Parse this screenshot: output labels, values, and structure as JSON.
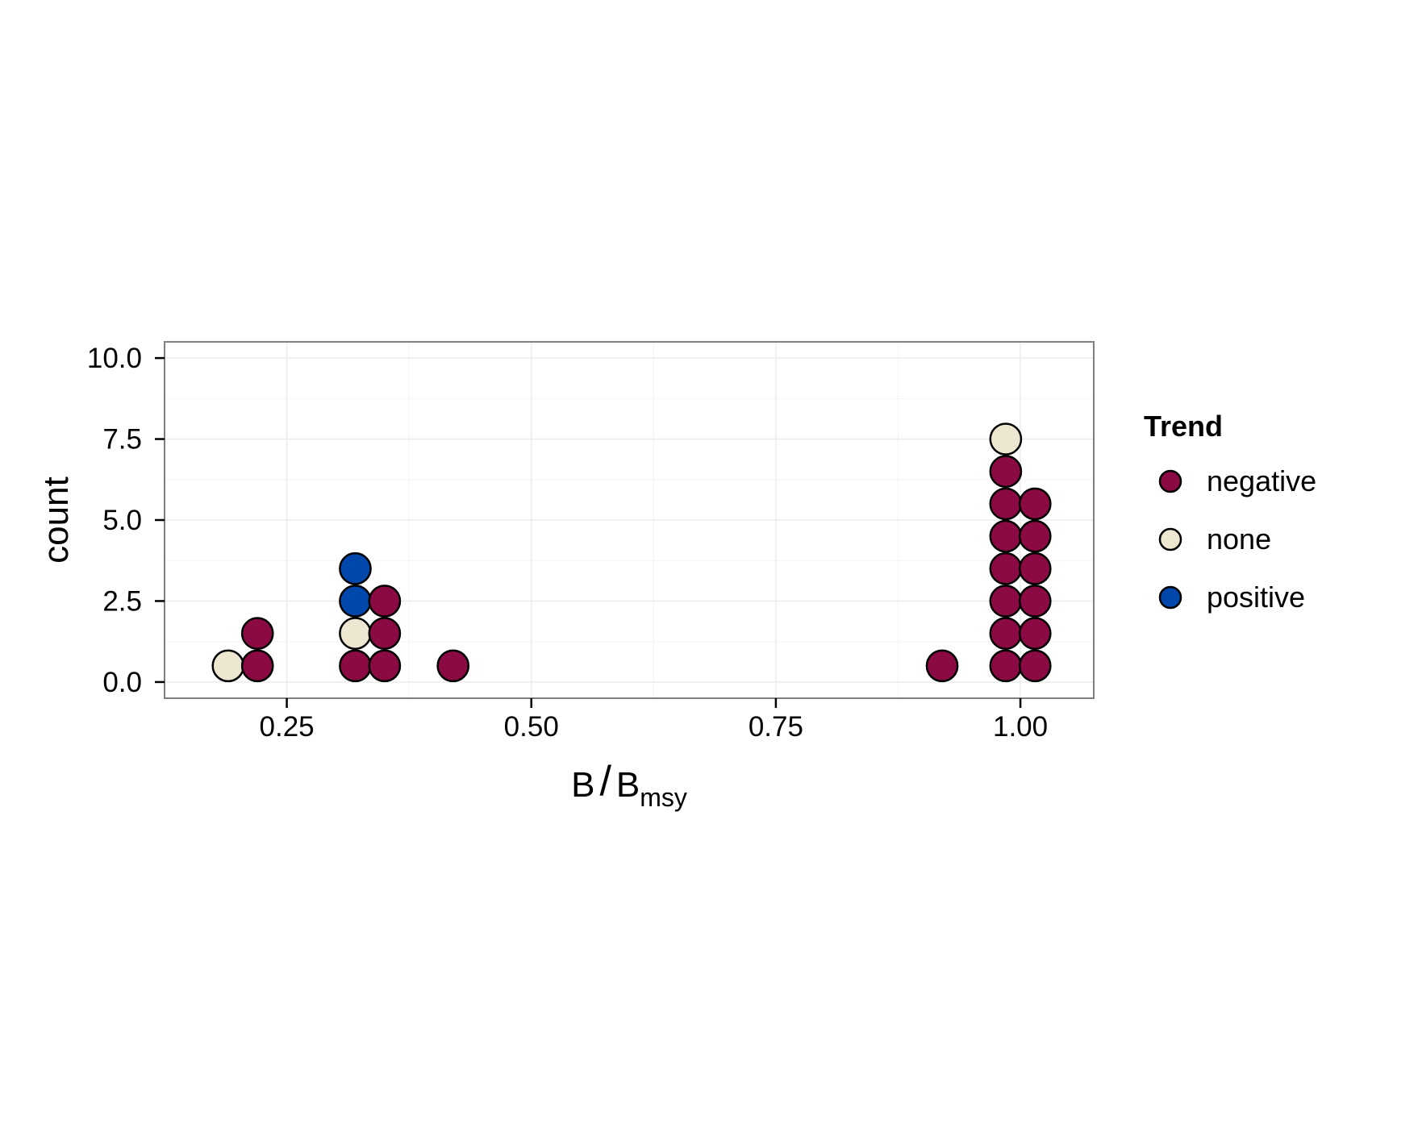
{
  "chart_data": {
    "type": "scatter",
    "subtype": "dotplot",
    "title": "",
    "xlabel": {
      "main": "B",
      "separator": "/",
      "base": "B",
      "subscript": "msy"
    },
    "ylabel": "count",
    "xlim": [
      0.125,
      1.075
    ],
    "ylim": [
      -0.5,
      10.5
    ],
    "x_ticks": [
      0.25,
      0.5,
      0.75,
      1.0
    ],
    "x_tick_labels": [
      "0.25",
      "0.50",
      "0.75",
      "1.00"
    ],
    "y_ticks": [
      0,
      2.5,
      5,
      7.5,
      10
    ],
    "y_tick_labels": [
      "0.0",
      "2.5",
      "5.0",
      "7.5",
      "10.0"
    ],
    "grid": true,
    "legend": {
      "title": "Trend",
      "position": "right",
      "entries": [
        {
          "name": "negative",
          "color": "#8B0A43"
        },
        {
          "name": "none",
          "color": "#EDE6D0"
        },
        {
          "name": "positive",
          "color": "#0047AB"
        }
      ]
    },
    "dot_outline_color": "#000000",
    "points": [
      {
        "x": 0.19,
        "y": 0.5,
        "trend": "none"
      },
      {
        "x": 0.22,
        "y": 0.5,
        "trend": "negative"
      },
      {
        "x": 0.22,
        "y": 1.5,
        "trend": "negative"
      },
      {
        "x": 0.32,
        "y": 0.5,
        "trend": "negative"
      },
      {
        "x": 0.32,
        "y": 1.5,
        "trend": "none"
      },
      {
        "x": 0.32,
        "y": 2.5,
        "trend": "positive"
      },
      {
        "x": 0.32,
        "y": 3.5,
        "trend": "positive"
      },
      {
        "x": 0.35,
        "y": 0.5,
        "trend": "negative"
      },
      {
        "x": 0.35,
        "y": 1.5,
        "trend": "negative"
      },
      {
        "x": 0.35,
        "y": 2.5,
        "trend": "negative"
      },
      {
        "x": 0.42,
        "y": 0.5,
        "trend": "negative"
      },
      {
        "x": 0.92,
        "y": 0.5,
        "trend": "negative"
      },
      {
        "x": 0.985,
        "y": 0.5,
        "trend": "negative"
      },
      {
        "x": 0.985,
        "y": 1.5,
        "trend": "negative"
      },
      {
        "x": 0.985,
        "y": 2.5,
        "trend": "negative"
      },
      {
        "x": 0.985,
        "y": 3.5,
        "trend": "negative"
      },
      {
        "x": 0.985,
        "y": 4.5,
        "trend": "negative"
      },
      {
        "x": 0.985,
        "y": 5.5,
        "trend": "negative"
      },
      {
        "x": 0.985,
        "y": 6.5,
        "trend": "negative"
      },
      {
        "x": 0.985,
        "y": 7.5,
        "trend": "none"
      },
      {
        "x": 1.015,
        "y": 0.5,
        "trend": "negative"
      },
      {
        "x": 1.015,
        "y": 1.5,
        "trend": "negative"
      },
      {
        "x": 1.015,
        "y": 2.5,
        "trend": "negative"
      },
      {
        "x": 1.015,
        "y": 3.5,
        "trend": "negative"
      },
      {
        "x": 1.015,
        "y": 4.5,
        "trend": "negative"
      },
      {
        "x": 1.015,
        "y": 5.5,
        "trend": "negative"
      }
    ]
  }
}
